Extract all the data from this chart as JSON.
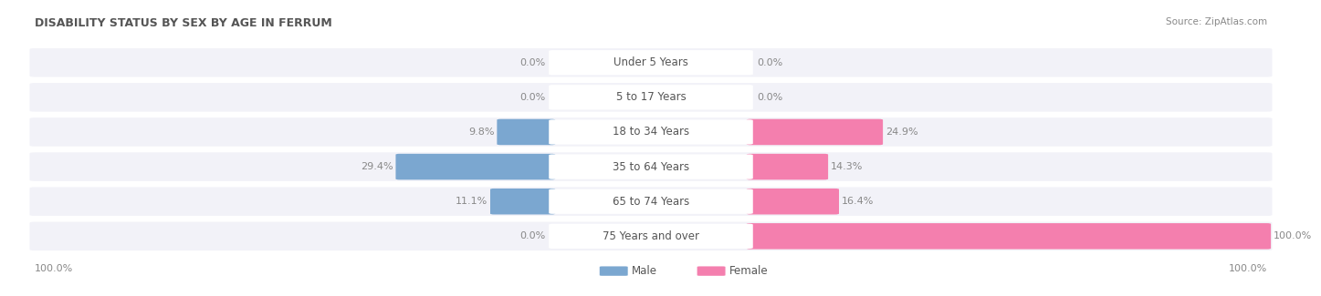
{
  "title": "DISABILITY STATUS BY SEX BY AGE IN FERRUM",
  "source": "Source: ZipAtlas.com",
  "categories": [
    "Under 5 Years",
    "5 to 17 Years",
    "18 to 34 Years",
    "35 to 64 Years",
    "65 to 74 Years",
    "75 Years and over"
  ],
  "male_values": [
    0.0,
    0.0,
    9.8,
    29.4,
    11.1,
    0.0
  ],
  "female_values": [
    0.0,
    0.0,
    24.9,
    14.3,
    16.4,
    100.0
  ],
  "male_color": "#7ba7d0",
  "female_color": "#f47fae",
  "max_value": 100.0,
  "title_fontsize": 9,
  "bar_label_fontsize": 8,
  "category_fontsize": 8.5,
  "fig_bg_color": "#ffffff",
  "row_bg_color": "#f2f2f8"
}
